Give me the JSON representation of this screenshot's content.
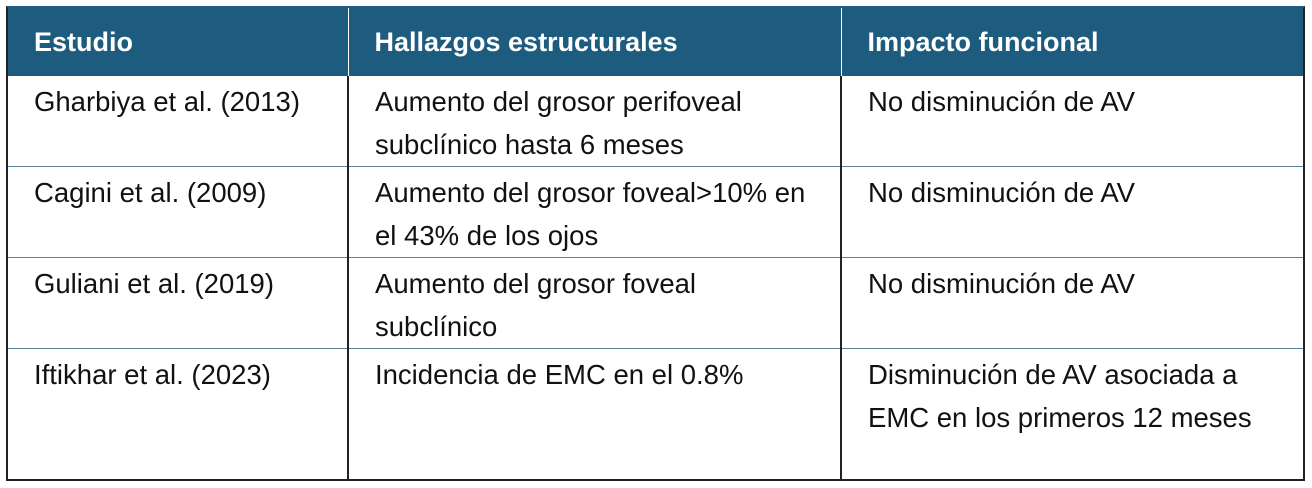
{
  "colors": {
    "header_background": "#1d5b7f",
    "header_text": "#ffffff",
    "border": "#222222"
  },
  "table": {
    "headers": [
      "Estudio",
      "Hallazgos estructurales",
      "Impacto funcional"
    ],
    "rows": [
      {
        "study": "Gharbiya et al. (2013)",
        "findings": "Aumento del grosor perifoveal subclínico hasta 6 meses",
        "impact": "No disminución de AV"
      },
      {
        "study": "Cagini et al. (2009)",
        "findings": "Aumento del grosor foveal>10% en el 43% de los ojos",
        "impact": "No disminución de AV"
      },
      {
        "study": "Guliani et al. (2019)",
        "findings": "Aumento del grosor foveal subclínico",
        "impact": "No disminución de AV"
      },
      {
        "study": "Iftikhar et al. (2023)",
        "findings": "Incidencia de EMC en el 0.8%",
        "impact": "Disminución de AV asociada a EMC en los primeros 12 meses"
      }
    ]
  }
}
